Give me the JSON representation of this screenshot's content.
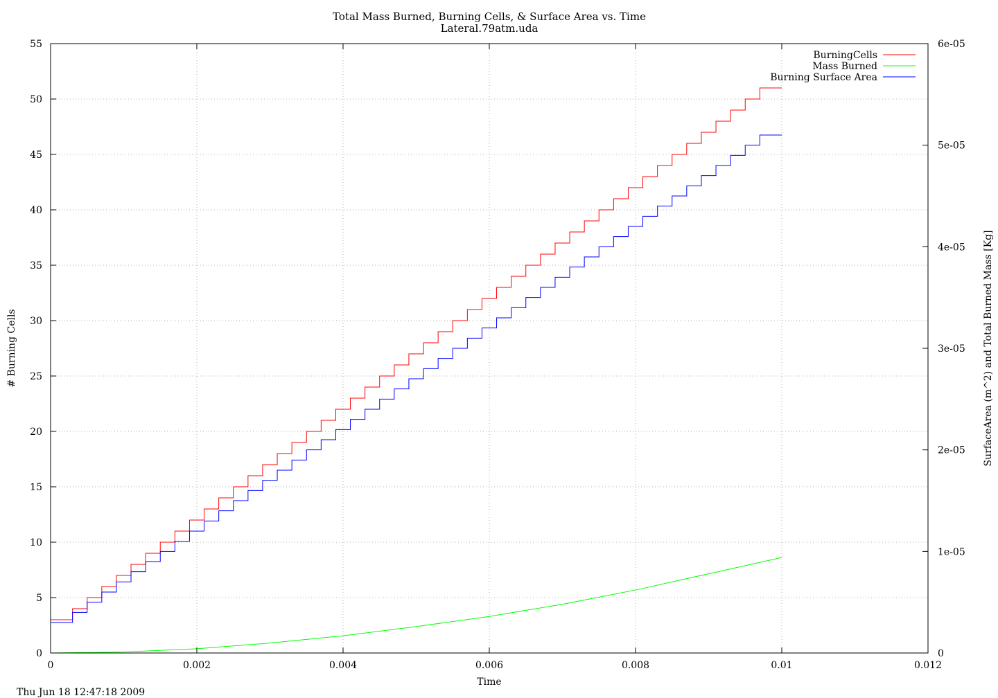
{
  "chart_data": {
    "type": "line",
    "title": "Total Mass Burned, Burning Cells, & Surface Area vs. Time",
    "subtitle": "Lateral.79atm.uda",
    "xlabel": "Time",
    "ylabel_left": "# Burning Cells",
    "ylabel_right": "SurfaceArea (m^2) and Total Burned Mass [Kg]",
    "timestamp": "Thu Jun 18 12:47:18 2009",
    "xlim": [
      0,
      0.012
    ],
    "ylim_left": [
      0,
      55
    ],
    "ylim_right": [
      0,
      6e-05
    ],
    "x_ticks": [
      0,
      0.002,
      0.004,
      0.006,
      0.008,
      0.01,
      0.012
    ],
    "x_tick_labels": [
      "0",
      "0.002",
      "0.004",
      "0.006",
      "0.008",
      "0.01",
      "0.012"
    ],
    "y_left_ticks": [
      0,
      5,
      10,
      15,
      20,
      25,
      30,
      35,
      40,
      45,
      50,
      55
    ],
    "y_left_tick_labels": [
      "0",
      "5",
      "10",
      "15",
      "20",
      "25",
      "30",
      "35",
      "40",
      "45",
      "50",
      "55"
    ],
    "y_right_ticks": [
      0,
      1e-05,
      2e-05,
      3e-05,
      4e-05,
      5e-05,
      6e-05
    ],
    "y_right_tick_labels": [
      "0",
      "1e-05",
      "2e-05",
      "3e-05",
      "4e-05",
      "5e-05",
      "6e-05"
    ],
    "grid": true,
    "legend_position": "top-right",
    "series": [
      {
        "name": "BurningCells",
        "axis": "left",
        "style": "step",
        "color": "#ff0000",
        "x": [
          0,
          0.0003,
          0.0005,
          0.0007,
          0.0009,
          0.0011,
          0.0013,
          0.0015,
          0.0017,
          0.0019,
          0.0021,
          0.0023,
          0.0025,
          0.0027,
          0.0029,
          0.0031,
          0.0033,
          0.0035,
          0.0037,
          0.0039,
          0.0041,
          0.0043,
          0.0045,
          0.0047,
          0.0049,
          0.0051,
          0.0053,
          0.0055,
          0.0057,
          0.0059,
          0.0061,
          0.0063,
          0.0065,
          0.0067,
          0.0069,
          0.0071,
          0.0073,
          0.0075,
          0.0077,
          0.0079,
          0.0081,
          0.0083,
          0.0085,
          0.0087,
          0.0089,
          0.0091,
          0.0093,
          0.0095,
          0.0097,
          0.0099,
          0.01
        ],
        "values": [
          3,
          4,
          5,
          6,
          7,
          8,
          9,
          10,
          11,
          12,
          13,
          14,
          15,
          16,
          17,
          18,
          19,
          20,
          21,
          22,
          23,
          24,
          25,
          26,
          27,
          28,
          29,
          30,
          31,
          32,
          33,
          34,
          35,
          36,
          37,
          38,
          39,
          40,
          41,
          42,
          43,
          44,
          45,
          46,
          47,
          48,
          49,
          50,
          51,
          51,
          51
        ]
      },
      {
        "name": "Mass Burned",
        "axis": "right",
        "style": "line",
        "color": "#00ff00",
        "x": [
          0,
          0.001,
          0.002,
          0.003,
          0.004,
          0.005,
          0.006,
          0.007,
          0.008,
          0.009,
          0.01
        ],
        "values": [
          0,
          9e-08,
          4.2e-07,
          9.8e-07,
          1.7e-06,
          2.6e-06,
          3.6e-06,
          4.8e-06,
          6.2e-06,
          7.8e-06,
          9.4e-06
        ]
      },
      {
        "name": "Burning Surface Area",
        "axis": "right",
        "style": "step",
        "color": "#0000ff",
        "x": [
          0,
          0.0003,
          0.0005,
          0.0007,
          0.0009,
          0.0011,
          0.0013,
          0.0015,
          0.0017,
          0.0019,
          0.0021,
          0.0023,
          0.0025,
          0.0027,
          0.0029,
          0.0031,
          0.0033,
          0.0035,
          0.0037,
          0.0039,
          0.0041,
          0.0043,
          0.0045,
          0.0047,
          0.0049,
          0.0051,
          0.0053,
          0.0055,
          0.0057,
          0.0059,
          0.0061,
          0.0063,
          0.0065,
          0.0067,
          0.0069,
          0.0071,
          0.0073,
          0.0075,
          0.0077,
          0.0079,
          0.0081,
          0.0083,
          0.0085,
          0.0087,
          0.0089,
          0.0091,
          0.0093,
          0.0095,
          0.0097,
          0.0099,
          0.01
        ],
        "values": [
          3e-06,
          4e-06,
          5e-06,
          6e-06,
          7e-06,
          8e-06,
          9e-06,
          1e-05,
          1.1e-05,
          1.2e-05,
          1.3e-05,
          1.4e-05,
          1.5e-05,
          1.6e-05,
          1.7e-05,
          1.8e-05,
          1.9e-05,
          2e-05,
          2.1e-05,
          2.2e-05,
          2.3e-05,
          2.4e-05,
          2.5e-05,
          2.6e-05,
          2.7e-05,
          2.8e-05,
          2.9e-05,
          3e-05,
          3.1e-05,
          3.2e-05,
          3.3e-05,
          3.4e-05,
          3.5e-05,
          3.6e-05,
          3.7e-05,
          3.8e-05,
          3.9e-05,
          4e-05,
          4.1e-05,
          4.2e-05,
          4.3e-05,
          4.4e-05,
          4.5e-05,
          4.6e-05,
          4.7e-05,
          4.8e-05,
          4.9e-05,
          5e-05,
          5.1e-05,
          5.1e-05,
          5.1e-05
        ]
      }
    ],
    "colors": {
      "axis": "#000000",
      "grid": "#b0b0b0",
      "left_axis_label": "#ff0000"
    }
  }
}
